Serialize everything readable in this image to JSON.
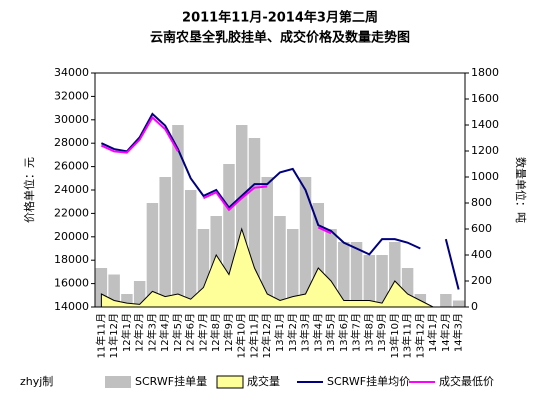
{
  "chart_data": {
    "type": "combo",
    "title": "2011年11月-2014年3月第二周",
    "subtitle": "云南农垦全乳胶挂单、成交价格及数量走势图",
    "y_label": "价格单位：元",
    "y2_label": "数量单位：吨",
    "footer": "zhyj制",
    "categories": [
      "11年11月",
      "11年12月",
      "12年1月",
      "12年2月",
      "12年3月",
      "12年4月",
      "12年5月",
      "12年6月",
      "12年7月",
      "12年8月",
      "12年9月",
      "12年10月",
      "12年11月",
      "12年12月",
      "13年1月",
      "13年2月",
      "13年3月",
      "13年4月",
      "13年5月",
      "13年6月",
      "13年7月",
      "13年8月",
      "13年9月",
      "13年10月",
      "13年11月",
      "13年12月",
      "14年1月",
      "14年2月",
      "14年3月"
    ],
    "series": [
      {
        "name": "SCRWF挂单量",
        "kind": "bar",
        "axis": "y2",
        "color": "#c0c0c0",
        "values": [
          300,
          250,
          100,
          200,
          800,
          1000,
          1400,
          900,
          600,
          700,
          1100,
          1400,
          1300,
          1000,
          700,
          600,
          1000,
          800,
          600,
          500,
          500,
          400,
          400,
          500,
          300,
          100,
          0,
          100,
          50
        ]
      },
      {
        "name": "成交量",
        "kind": "area",
        "axis": "y2",
        "color": "#ffff99",
        "values": [
          100,
          50,
          30,
          20,
          120,
          80,
          100,
          60,
          150,
          400,
          250,
          600,
          300,
          100,
          50,
          80,
          100,
          300,
          200,
          50,
          50,
          50,
          30,
          200,
          100,
          50,
          0,
          0,
          0
        ]
      },
      {
        "name": "SCRWF挂单均价",
        "kind": "line",
        "axis": "y",
        "color": "#000080",
        "values": [
          28000,
          27500,
          27300,
          28500,
          30500,
          29500,
          27500,
          25000,
          23500,
          24000,
          22500,
          23500,
          24500,
          24500,
          25500,
          25800,
          24000,
          21000,
          20500,
          19500,
          19000,
          18500,
          19800,
          19800,
          19500,
          19000,
          null,
          19800,
          15500
        ]
      },
      {
        "name": "成交最低价",
        "kind": "line",
        "axis": "y",
        "color": "#ff00ff",
        "values": [
          27800,
          27300,
          27200,
          28300,
          30200,
          29200,
          27300,
          null,
          23300,
          23800,
          22300,
          23300,
          24200,
          24300,
          null,
          null,
          null,
          20800,
          20300,
          null,
          null,
          null,
          null,
          null,
          null,
          null,
          null,
          null,
          null
        ]
      }
    ],
    "ylim": [
      14000,
      34000
    ],
    "yticks": [
      14000,
      16000,
      18000,
      20000,
      22000,
      24000,
      26000,
      28000,
      30000,
      32000,
      34000
    ],
    "y2lim": [
      0,
      1800
    ],
    "y2ticks": [
      0,
      200,
      400,
      600,
      800,
      1000,
      1200,
      1400,
      1600,
      1800
    ]
  }
}
